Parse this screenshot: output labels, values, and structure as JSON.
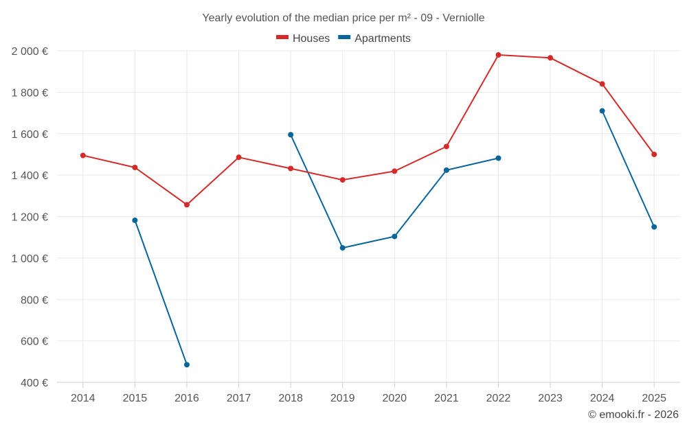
{
  "chart_data": {
    "type": "line",
    "title": "Yearly evolution of the median price per m² - 09 - Verniolle",
    "categories": [
      "2014",
      "2015",
      "2016",
      "2017",
      "2018",
      "2019",
      "2020",
      "2021",
      "2022",
      "2023",
      "2024",
      "2025"
    ],
    "y_ticks": [
      "400 €",
      "600 €",
      "800 €",
      "1 000 €",
      "1 200 €",
      "1 400 €",
      "1 600 €",
      "1 800 €",
      "2 000 €"
    ],
    "ylim": [
      400,
      2000
    ],
    "xlabel": "",
    "ylabel": "",
    "legend_position": "top-center",
    "grid": true,
    "series": [
      {
        "name": "Houses",
        "color": "#d42a2a",
        "values": [
          1495,
          1437,
          1257,
          1486,
          1432,
          1377,
          1419,
          1538,
          1980,
          1966,
          1840,
          1500
        ]
      },
      {
        "name": "Apartments",
        "color": "#08659b",
        "values": [
          null,
          1182,
          485,
          null,
          1595,
          1049,
          1104,
          1424,
          1482,
          null,
          1710,
          1150
        ]
      }
    ]
  },
  "credit": "© emooki.fr - 2026"
}
